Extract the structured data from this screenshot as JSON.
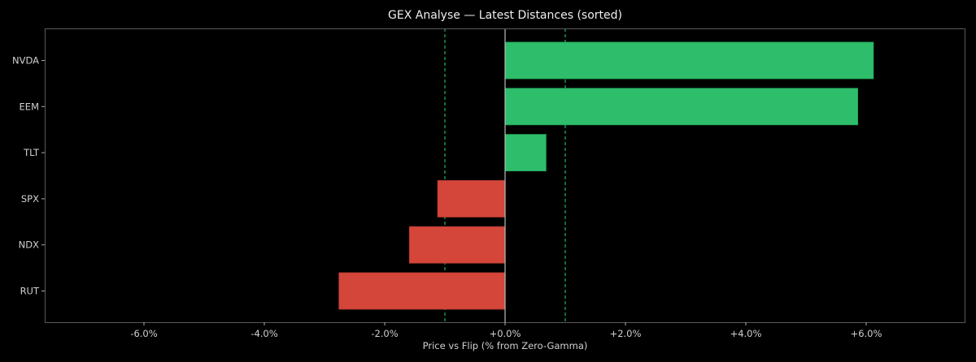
{
  "chart_data": {
    "type": "bar",
    "orientation": "horizontal",
    "title": "GEX Analyse — Latest Distances (sorted)",
    "xlabel": "Price vs Flip (% from Zero-Gamma)",
    "ylabel": "",
    "categories": [
      "NVDA",
      "EEM",
      "TLT",
      "SPX",
      "NDX",
      "RUT"
    ],
    "values": [
      6.12,
      5.86,
      0.68,
      -1.12,
      -1.59,
      -2.76
    ],
    "unit": "%",
    "xlim": [
      -7.65,
      7.65
    ],
    "xticks": [
      -6,
      -4,
      -2,
      0,
      2,
      4,
      6
    ],
    "xtick_labels": [
      "-6.0%",
      "-4.0%",
      "-2.0%",
      "+0.0%",
      "+2.0%",
      "+4.0%",
      "+6.0%"
    ],
    "reference_lines": [
      {
        "x": 0,
        "style": "solid",
        "color": "#bbbbbb"
      },
      {
        "x": -1.0,
        "style": "dashed",
        "color": "#27c265"
      },
      {
        "x": 1.0,
        "style": "dashed",
        "color": "#27c265"
      }
    ],
    "colors": {
      "positive": "#2ebd6b",
      "negative": "#d4463a"
    },
    "grid": false,
    "legend": null
  }
}
